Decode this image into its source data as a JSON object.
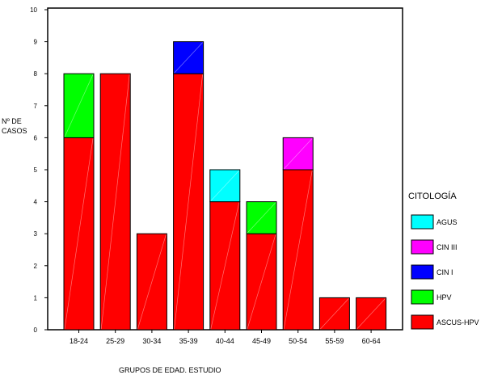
{
  "chart_data": {
    "type": "bar",
    "stacked": true,
    "categories": [
      "18-24",
      "25-29",
      "30-34",
      "35-39",
      "40-44",
      "45-49",
      "50-54",
      "55-59",
      "60-64"
    ],
    "series": [
      {
        "name": "ASCUS-HPV",
        "color": "#ff0000",
        "values": [
          6,
          8,
          3,
          8,
          4,
          3,
          5,
          1,
          1
        ]
      },
      {
        "name": "HPV",
        "color": "#00ff00",
        "values": [
          2,
          0,
          0,
          0,
          0,
          1,
          0,
          0,
          0
        ]
      },
      {
        "name": "CIN I",
        "color": "#0000ff",
        "values": [
          0,
          0,
          0,
          1,
          0,
          0,
          0,
          0,
          0
        ]
      },
      {
        "name": "CIN III",
        "color": "#ff00ff",
        "values": [
          0,
          0,
          0,
          0,
          0,
          0,
          1,
          0,
          0
        ]
      },
      {
        "name": "AGUS",
        "color": "#00ffff",
        "values": [
          0,
          0,
          0,
          0,
          1,
          0,
          0,
          0,
          0
        ]
      }
    ],
    "legend_order": [
      "AGUS",
      "CIN III",
      "CIN I",
      "HPV",
      "ASCUS-HPV"
    ],
    "legend_title": "CITOLOGÍA",
    "legend_position": "right",
    "ylabel_line1": "Nº DE",
    "ylabel_line2": "CASOS",
    "xlabel": "GRUPOS DE EDAD. ESTUDIO",
    "ylim": [
      0,
      10
    ],
    "yticks": [
      0,
      1,
      2,
      3,
      4,
      5,
      6,
      7,
      8,
      9,
      10
    ],
    "grid": false
  }
}
